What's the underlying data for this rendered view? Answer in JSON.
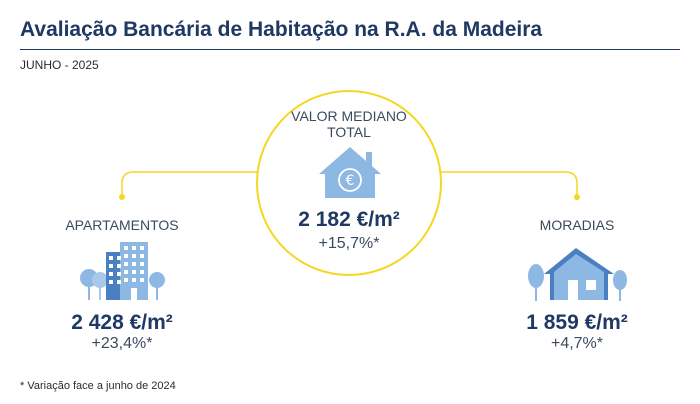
{
  "header": {
    "title": "Avaliação Bancária de Habitação na R.A. da Madeira",
    "date": "JUNHO - 2025"
  },
  "total": {
    "label_line1": "VALOR MEDIANO",
    "label_line2": "TOTAL",
    "value": "2 182 €/m²",
    "change": "+15,7%*",
    "icon": "house-euro-icon"
  },
  "apartments": {
    "label": "APARTAMENTOS",
    "value": "2 428 €/m²",
    "change": "+23,4%*",
    "icon": "apartment-buildings-icon"
  },
  "houses": {
    "label": "MORADIAS",
    "value": "1 859 €/m²",
    "change": "+4,7%*",
    "icon": "house-trees-icon"
  },
  "footnote": "* Variação face a junho de 2024",
  "colors": {
    "title": "#1f3864",
    "accent_yellow": "#f5d623",
    "icon_blue": "#8db8e3",
    "icon_dark_blue": "#4a7fc1"
  }
}
